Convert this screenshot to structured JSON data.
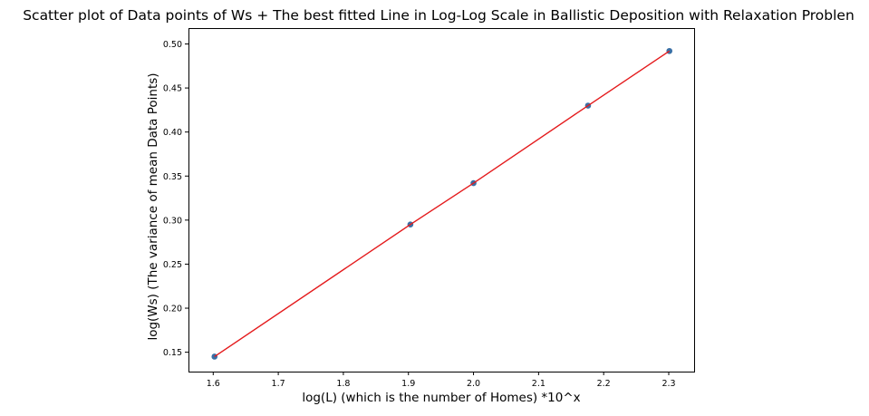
{
  "chart_data": {
    "type": "scatter",
    "title": "Scatter plot of Data points of Ws + The best fitted Line in Log-Log Scale in Ballistic Deposition with Relaxation Problen",
    "xlabel": "log(L) (which is the number of Homes) *10^x",
    "ylabel": "log(Ws) (The variance of mean Data Points)",
    "xlim": [
      1.562,
      2.339
    ],
    "ylim": [
      0.128,
      0.518
    ],
    "xticks": [
      "1.6",
      "1.7",
      "1.8",
      "1.9",
      "2.0",
      "2.1",
      "2.2",
      "2.3"
    ],
    "yticks": [
      "0.15",
      "0.20",
      "0.25",
      "0.30",
      "0.35",
      "0.40",
      "0.45",
      "0.50"
    ],
    "grid": false,
    "series": [
      {
        "kind": "points",
        "color": "#3a6fa5",
        "x": [
          1.602,
          1.903,
          2.0,
          2.176,
          2.301
        ],
        "y": [
          0.145,
          0.295,
          0.342,
          0.43,
          0.492
        ]
      },
      {
        "kind": "line",
        "color": "#e41a1c",
        "x": [
          1.602,
          1.903,
          2.0,
          2.176,
          2.301
        ],
        "y": [
          0.145,
          0.295,
          0.342,
          0.43,
          0.492
        ]
      }
    ]
  }
}
